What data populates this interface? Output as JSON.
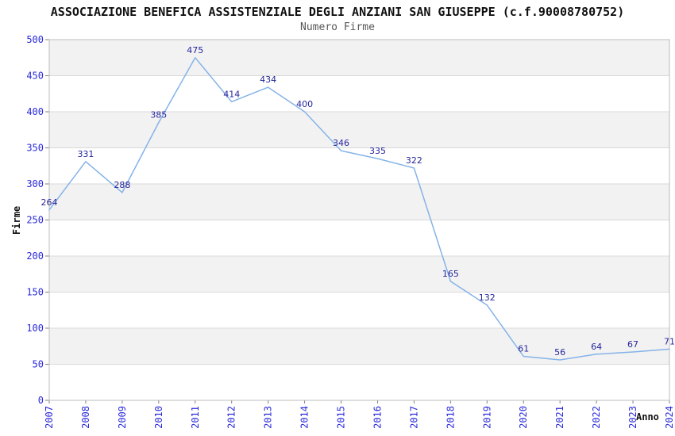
{
  "chart_data": {
    "type": "line",
    "title": "ASSOCIAZIONE BENEFICA ASSISTENZIALE DEGLI ANZIANI SAN GIUSEPPE (c.f.90008780752)",
    "subtitle": "Numero Firme",
    "xlabel": "Anno",
    "ylabel": "Firme",
    "categories": [
      "2007",
      "2008",
      "2009",
      "2010",
      "2011",
      "2012",
      "2013",
      "2014",
      "2015",
      "2016",
      "2017",
      "2018",
      "2019",
      "2020",
      "2021",
      "2022",
      "2023",
      "2024"
    ],
    "values": [
      264,
      331,
      288,
      385,
      475,
      414,
      434,
      400,
      346,
      335,
      322,
      165,
      132,
      61,
      56,
      64,
      67,
      71
    ],
    "ylim": [
      0,
      500
    ],
    "yticks": [
      0,
      50,
      100,
      150,
      200,
      250,
      300,
      350,
      400,
      450,
      500
    ],
    "grid": "horizontal",
    "banded_background": true,
    "legend": "none",
    "point_labels_visible": true,
    "x_tick_rotation": -90,
    "colors": {
      "line": "#85b3e8",
      "point_label": "#26269b",
      "tick_label": "#2b2bdb",
      "band_alt": "#f2f2f2",
      "band_main": "#ffffff",
      "gridline": "#d9d9d9",
      "border": "#bcbcbc",
      "tick": "#808080",
      "title": "#111111",
      "subtitle": "#575757"
    }
  }
}
